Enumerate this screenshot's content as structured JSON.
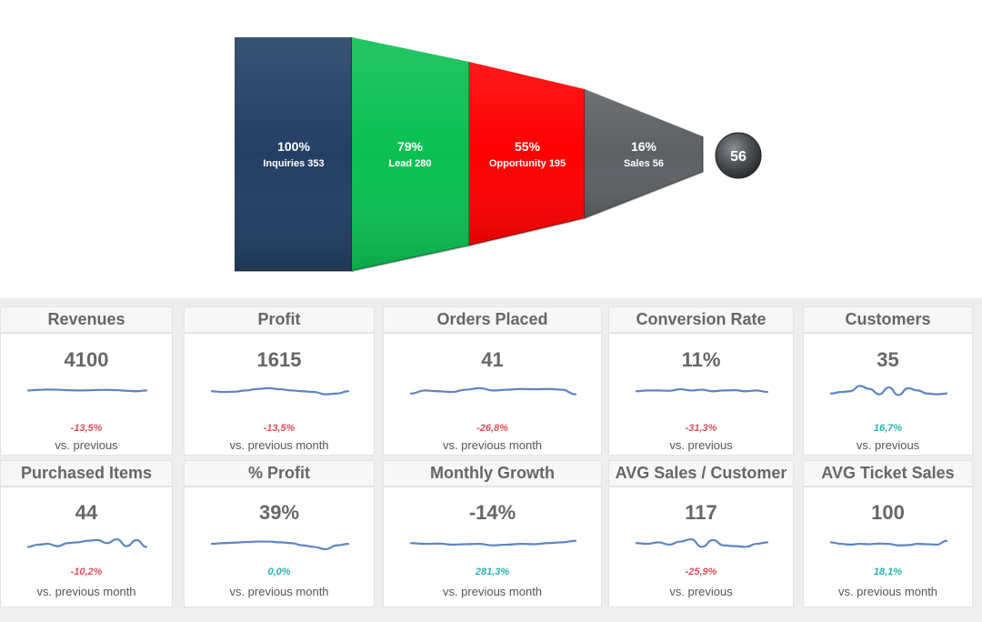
{
  "funnel": {
    "stages": [
      {
        "pct": "100%",
        "label": "Inquiries 353",
        "color": "#243f63"
      },
      {
        "pct": "79%",
        "label": "Lead 280",
        "color": "#0bbf53"
      },
      {
        "pct": "55%",
        "label": "Opportunity 195",
        "color": "#ff0000"
      },
      {
        "pct": "16%",
        "label": "Sales 56",
        "color": "#5d6165"
      }
    ],
    "endpoint_value": "56"
  },
  "kpis": [
    {
      "title": "Revenues",
      "value": "4100",
      "change": "-13,5%",
      "trend": "neg",
      "subtitle": "vs. previous",
      "spark": [
        0.5,
        0.46,
        0.44,
        0.45,
        0.48,
        0.5,
        0.49,
        0.47,
        0.46,
        0.48,
        0.52,
        0.55,
        0.5
      ]
    },
    {
      "title": "Profit",
      "value": "1615",
      "change": "-13,5%",
      "trend": "neg",
      "subtitle": "vs. previous month",
      "spark": [
        0.55,
        0.6,
        0.58,
        0.5,
        0.4,
        0.35,
        0.42,
        0.5,
        0.55,
        0.6,
        0.75,
        0.7,
        0.55
      ]
    },
    {
      "title": "Orders Placed",
      "value": "41",
      "change": "-26,8%",
      "trend": "neg",
      "subtitle": "vs. previous month",
      "spark": [
        0.7,
        0.5,
        0.55,
        0.6,
        0.45,
        0.35,
        0.5,
        0.45,
        0.4,
        0.42,
        0.4,
        0.45,
        0.75
      ]
    },
    {
      "title": "Conversion Rate",
      "value": "11%",
      "change": "-31,3%",
      "trend": "neg",
      "subtitle": "vs. previous",
      "spark": [
        0.55,
        0.5,
        0.5,
        0.52,
        0.42,
        0.5,
        0.45,
        0.55,
        0.5,
        0.48,
        0.55,
        0.5,
        0.6
      ]
    },
    {
      "title": "Customers",
      "value": "35",
      "change": "16,7%",
      "trend": "pos",
      "subtitle": "vs. previous",
      "spark": [
        0.7,
        0.6,
        0.55,
        0.2,
        0.4,
        0.75,
        0.3,
        0.8,
        0.35,
        0.5,
        0.7,
        0.75,
        0.7
      ]
    },
    {
      "title": "Purchased Items",
      "value": "44",
      "change": "-10,2%",
      "trend": "neg",
      "subtitle": "vs. previous month",
      "spark": [
        0.8,
        0.65,
        0.6,
        0.75,
        0.55,
        0.5,
        0.4,
        0.35,
        0.55,
        0.3,
        0.75,
        0.35,
        0.8
      ]
    },
    {
      "title": "% Profit",
      "value": "39%",
      "change": "0,0%",
      "trend": "pos",
      "subtitle": "vs. previous month",
      "spark": [
        0.6,
        0.55,
        0.52,
        0.48,
        0.45,
        0.45,
        0.5,
        0.55,
        0.7,
        0.8,
        0.95,
        0.7,
        0.6
      ]
    },
    {
      "title": "Monthly Growth",
      "value": "-14%",
      "change": "281,3%",
      "trend": "pos",
      "subtitle": "vs. previous month",
      "spark": [
        0.55,
        0.6,
        0.58,
        0.65,
        0.62,
        0.6,
        0.7,
        0.65,
        0.6,
        0.62,
        0.55,
        0.5,
        0.4
      ]
    },
    {
      "title": "AVG Sales / Customer",
      "value": "117",
      "change": "-25,9%",
      "trend": "neg",
      "subtitle": "vs. previous",
      "spark": [
        0.55,
        0.6,
        0.5,
        0.65,
        0.45,
        0.3,
        0.8,
        0.35,
        0.7,
        0.75,
        0.8,
        0.6,
        0.5
      ]
    },
    {
      "title": "AVG Ticket Sales",
      "value": "100",
      "change": "18,1%",
      "trend": "pos",
      "subtitle": "vs. previous month",
      "spark": [
        0.5,
        0.6,
        0.65,
        0.6,
        0.62,
        0.58,
        0.6,
        0.7,
        0.68,
        0.6,
        0.62,
        0.65,
        0.4
      ]
    }
  ]
}
